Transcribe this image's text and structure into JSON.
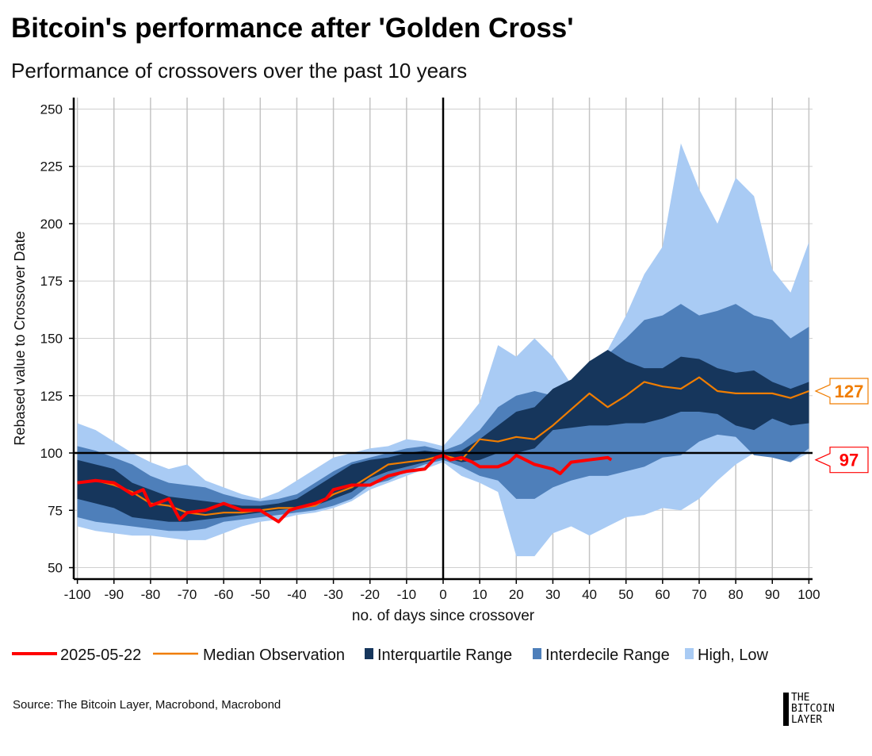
{
  "title": "Bitcoin's performance after 'Golden Cross'",
  "subtitle": "Performance of crossovers over the past 10 years",
  "source": "Source: The Bitcoin Layer, Macrobond, Macrobond",
  "logo": {
    "line1": "THE",
    "line2": "BITCOIN",
    "line3": "LAYER"
  },
  "colors": {
    "high_low": "#a9cbf4",
    "interdecile": "#4e7fba",
    "interquartile": "#16365c",
    "median": "#f07d00",
    "current": "#ff0000"
  },
  "chart_data": {
    "type": "area",
    "title": "Bitcoin's performance after 'Golden Cross'",
    "xlabel": "no. of days since crossover",
    "ylabel": "Rebased value to Crossover Date",
    "xlim": [
      -101,
      101
    ],
    "ylim": [
      45,
      255
    ],
    "xticks": [
      -100,
      -90,
      -80,
      -70,
      -60,
      -50,
      -40,
      -30,
      -20,
      -10,
      0,
      10,
      20,
      30,
      40,
      50,
      60,
      70,
      80,
      90,
      100
    ],
    "yticks": [
      50,
      75,
      100,
      125,
      150,
      175,
      200,
      225,
      250
    ],
    "grid": true,
    "reference_lines": {
      "x": 0,
      "y": 100
    },
    "legend": {
      "placement": "bottom",
      "entries": [
        "2025-05-22",
        "Median Observation",
        "Interquartile Range",
        "Interdecile Range",
        "High, Low"
      ]
    },
    "x": [
      -100,
      -95,
      -90,
      -85,
      -80,
      -75,
      -70,
      -65,
      -60,
      -55,
      -50,
      -45,
      -40,
      -35,
      -30,
      -25,
      -20,
      -15,
      -10,
      -5,
      0,
      5,
      10,
      15,
      20,
      25,
      30,
      35,
      40,
      45,
      50,
      55,
      60,
      65,
      70,
      75,
      80,
      85,
      90,
      95,
      100
    ],
    "bands": {
      "high_low": {
        "upper": [
          113,
          110,
          105,
          100,
          96,
          93,
          95,
          88,
          85,
          82,
          80,
          83,
          88,
          93,
          98,
          100,
          102,
          103,
          106,
          105,
          103,
          112,
          122,
          147,
          142,
          150,
          142,
          130,
          138,
          145,
          160,
          178,
          190,
          235,
          215,
          200,
          220,
          212,
          180,
          170,
          192
        ],
        "lower": [
          68,
          66,
          65,
          64,
          64,
          63,
          62,
          62,
          65,
          68,
          70,
          71,
          73,
          74,
          76,
          79,
          84,
          87,
          90,
          93,
          96,
          90,
          87,
          83,
          55,
          55,
          65,
          68,
          64,
          68,
          72,
          73,
          76,
          75,
          80,
          88,
          95,
          100,
          98,
          96,
          100
        ]
      },
      "interdecile": {
        "upper": [
          103,
          101,
          98,
          95,
          90,
          87,
          86,
          85,
          82,
          80,
          79,
          80,
          82,
          87,
          92,
          96,
          98,
          100,
          102,
          103,
          101,
          104,
          110,
          120,
          125,
          127,
          125,
          130,
          140,
          143,
          150,
          158,
          160,
          165,
          160,
          162,
          165,
          160,
          158,
          150,
          155
        ],
        "lower": [
          72,
          70,
          69,
          68,
          67,
          66,
          66,
          67,
          70,
          71,
          72,
          73,
          74,
          75,
          77,
          80,
          86,
          88,
          92,
          95,
          97,
          94,
          90,
          88,
          80,
          80,
          85,
          88,
          90,
          90,
          92,
          94,
          98,
          99,
          105,
          108,
          107,
          99,
          98,
          96,
          102
        ]
      },
      "interquartile": {
        "upper": [
          97,
          95,
          93,
          87,
          84,
          81,
          80,
          79,
          78,
          77,
          77,
          78,
          80,
          85,
          90,
          95,
          97,
          98,
          100,
          101,
          100,
          101,
          106,
          112,
          118,
          120,
          128,
          132,
          140,
          145,
          140,
          137,
          137,
          142,
          141,
          137,
          135,
          136,
          131,
          128,
          131
        ],
        "lower": [
          80,
          78,
          76,
          72,
          71,
          70,
          70,
          71,
          72,
          73,
          74,
          75,
          76,
          77,
          80,
          83,
          89,
          92,
          94,
          96,
          98,
          96,
          97,
          100,
          100,
          102,
          110,
          111,
          112,
          112,
          113,
          113,
          115,
          118,
          118,
          117,
          112,
          110,
          115,
          112,
          113
        ]
      }
    },
    "series": [
      {
        "name": "Median Observation",
        "x": [
          -100,
          -95,
          -90,
          -85,
          -80,
          -75,
          -70,
          -65,
          -60,
          -55,
          -50,
          -45,
          -40,
          -35,
          -30,
          -25,
          -20,
          -15,
          -10,
          -5,
          0,
          5,
          10,
          15,
          20,
          25,
          30,
          35,
          40,
          45,
          50,
          55,
          60,
          65,
          70,
          75,
          80,
          85,
          90,
          95,
          100
        ],
        "values": [
          87,
          88,
          86,
          83,
          78,
          77,
          74,
          73,
          74,
          74,
          75,
          76,
          76,
          77,
          82,
          85,
          90,
          95,
          96,
          97,
          99,
          97,
          106,
          105,
          107,
          106,
          112,
          119,
          126,
          120,
          125,
          131,
          129,
          128,
          133,
          127,
          126,
          126,
          126,
          124,
          127
        ],
        "last_label": "127"
      },
      {
        "name": "2025-05-22",
        "x": [
          -100,
          -95,
          -90,
          -85,
          -82,
          -80,
          -75,
          -72,
          -70,
          -65,
          -60,
          -55,
          -50,
          -47,
          -45,
          -42,
          -40,
          -35,
          -32,
          -30,
          -25,
          -20,
          -15,
          -10,
          -5,
          -2,
          0,
          2,
          5,
          8,
          10,
          15,
          18,
          20,
          25,
          30,
          32,
          35,
          40,
          45,
          46
        ],
        "values": [
          87,
          88,
          87,
          82,
          84,
          77,
          80,
          71,
          74,
          75,
          78,
          75,
          75,
          72,
          70,
          75,
          76,
          78,
          80,
          84,
          86,
          86,
          90,
          92,
          93,
          98,
          99,
          97,
          98,
          96,
          94,
          94,
          96,
          99,
          95,
          93,
          91,
          96,
          97,
          98,
          97
        ],
        "last_label": "97"
      }
    ]
  }
}
